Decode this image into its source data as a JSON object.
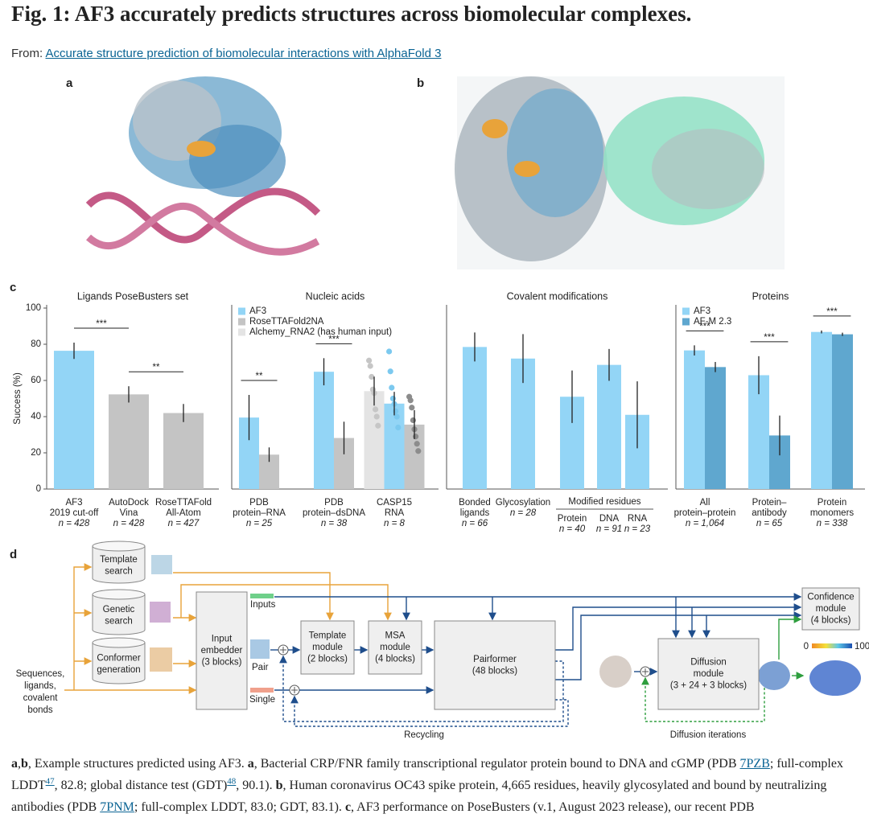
{
  "header": {
    "title": "Fig. 1: AF3 accurately predicts structures across biomolecular complexes.",
    "from_label": "From:",
    "source_link": "Accurate structure prediction of biomolecular interactions with AlphaFold 3"
  },
  "panel_labels": [
    "a",
    "b",
    "c",
    "d"
  ],
  "chart_data": [
    {
      "type": "bar",
      "title": "Ligands PoseBusters set",
      "y_label": "Success (%)",
      "ylim": [
        0,
        100
      ],
      "yticks": [
        0,
        20,
        40,
        60,
        80,
        100
      ],
      "categories": [
        [
          "AF3",
          "2019 cut-off"
        ],
        [
          "AutoDock",
          "Vina"
        ],
        [
          "RoseTTAFold",
          "All-Atom"
        ]
      ],
      "sample_sizes": [
        "n = 428",
        "n = 428",
        "n = 427"
      ],
      "series": [
        {
          "values": [
            76.4,
            52.3,
            42.0
          ],
          "errors": [
            4.5,
            4.5,
            5
          ],
          "colors": [
            "#93d5f6",
            "#c4c4c4",
            "#c4c4c4"
          ]
        }
      ],
      "significance": [
        {
          "label": "***",
          "between": [
            0,
            1
          ]
        },
        {
          "label": "**",
          "between": [
            1,
            2
          ]
        }
      ]
    },
    {
      "type": "bar",
      "title": "Nucleic acids",
      "ylim": [
        0,
        100
      ],
      "legend": "upper left",
      "categories": [
        [
          "PDB",
          "protein–RNA"
        ],
        [
          "PDB",
          "protein–dsDNA"
        ],
        [
          "CASP15",
          "RNA"
        ]
      ],
      "sample_sizes": [
        "n = 25",
        "n = 38",
        "n = 8"
      ],
      "series": [
        {
          "name": "AF3",
          "color": "#93d5f6",
          "point_color": "#7cc9ef",
          "values": [
            39.5,
            64.8,
            47.2
          ],
          "errors": [
            12.5,
            7.5,
            6.5
          ],
          "points": [
            null,
            null,
            [
              76,
              65,
              56,
              50,
              47,
              43,
              40,
              34
            ]
          ]
        },
        {
          "name": "RoseTTAFold2NA",
          "color": "#c4c4c4",
          "point_color": "#8c8c8c",
          "values": [
            19.0,
            28.2,
            35.6
          ],
          "errors": [
            4,
            9,
            8
          ],
          "points": [
            null,
            null,
            [
              51,
              49,
              45,
              38,
              33,
              29,
              25,
              21
            ]
          ]
        },
        {
          "name": "Alchemy_RNA2 (has human input)",
          "color": "#e4e4e4",
          "point_color": "#c6c6c6",
          "values": [
            null,
            null,
            54.1
          ],
          "errors": [
            null,
            null,
            8
          ],
          "points": [
            null,
            null,
            [
              71,
              68,
              62,
              55,
              53,
              44,
              40,
              35
            ]
          ]
        }
      ],
      "significance": [
        {
          "label": "**",
          "category": 0
        },
        {
          "label": "***",
          "category": 1
        }
      ]
    },
    {
      "type": "bar",
      "title": "Covalent modifications",
      "ylim": [
        0,
        100
      ],
      "categories": [
        [
          "Bonded",
          "ligands"
        ],
        [
          "Glycosylation"
        ],
        [
          "Protein"
        ],
        [
          "DNA"
        ],
        [
          "RNA"
        ]
      ],
      "sample_sizes": [
        "n = 66",
        "n = 28",
        "n = 40",
        "n = 91",
        "n = 23"
      ],
      "groups": [
        {
          "label": "Modified residues",
          "categories": [
            2,
            4
          ]
        }
      ],
      "series": [
        {
          "color": "#93d5f6",
          "values": [
            78.5,
            72.1,
            51.0,
            68.6,
            41.0
          ],
          "errors": [
            8,
            13.5,
            14.5,
            8.8,
            18.5
          ]
        }
      ]
    },
    {
      "type": "bar",
      "title": "Proteins",
      "ylim": [
        0,
        100
      ],
      "legend": "upper left",
      "categories": [
        [
          "All",
          "protein–protein"
        ],
        [
          "Protein–",
          "antibody"
        ],
        [
          "Protein",
          "monomers"
        ]
      ],
      "sample_sizes": [
        "n = 1,064",
        "n = 65",
        "n = 338"
      ],
      "series": [
        {
          "name": "AF3",
          "color": "#93d5f6",
          "values": [
            76.6,
            62.9,
            86.8
          ],
          "errors": [
            2.8,
            10.5,
            0.8
          ]
        },
        {
          "name": "AF-M 2.3",
          "color": "#5fa7cf",
          "values": [
            67.4,
            29.6,
            85.5
          ],
          "errors": [
            2.8,
            11,
            0.9
          ]
        }
      ],
      "significance": [
        {
          "label": "***",
          "category": 0
        },
        {
          "label": "***",
          "category": 1
        },
        {
          "label": "***",
          "category": 2
        }
      ]
    }
  ],
  "diagram": {
    "nodes": [
      {
        "label": [
          "Template",
          "search"
        ]
      },
      {
        "label": [
          "Genetic",
          "search"
        ]
      },
      {
        "label": [
          "Conformer",
          "generation"
        ]
      },
      {
        "label": [
          "Input",
          "embedder",
          "(3 blocks)"
        ]
      },
      {
        "label": [
          "Template",
          "module",
          "(2 blocks)"
        ]
      },
      {
        "label": [
          "MSA",
          "module",
          "(4 blocks)"
        ]
      },
      {
        "label": [
          "Pairformer",
          "(48 blocks)"
        ]
      },
      {
        "label": [
          "Diffusion",
          "module",
          "(3 + 24 + 3 blocks)"
        ]
      },
      {
        "label": [
          "Confidence",
          "module",
          "(4 blocks)"
        ]
      }
    ],
    "inputs_label": [
      "Sequences,",
      "ligands,",
      "covalent",
      "bonds"
    ],
    "stream_labels": [
      "Inputs",
      "Pair",
      "Single"
    ],
    "loop_labels": [
      "Recycling",
      "Diffusion iterations"
    ],
    "confidence_scale": [
      "0",
      "100"
    ]
  },
  "caption": [
    {
      "text": "a",
      "style": "bold"
    },
    {
      "text": ","
    },
    {
      "text": "b",
      "style": "bold"
    },
    {
      "text": ", Example structures predicted using AF3. "
    },
    {
      "text": "a",
      "style": "bold"
    },
    {
      "text": ", Bacterial CRP/FNR family transcriptional regulator protein bound to DNA and cGMP (PDB "
    },
    {
      "text": "7PZB",
      "style": "link"
    },
    {
      "text": "; full-complex LDDT"
    },
    {
      "text": "47",
      "style": "sup-link"
    },
    {
      "text": ", 82.8; global distance test (GDT)"
    },
    {
      "text": "48",
      "style": "sup-link"
    },
    {
      "text": ", 90.1). "
    },
    {
      "text": "b",
      "style": "bold"
    },
    {
      "text": ", Human coronavirus OC43 spike protein, 4,665 residues, heavily glycosylated and bound by neutralizing antibodies (PDB "
    },
    {
      "text": "7PNM",
      "style": "link"
    },
    {
      "text": "; full-complex LDDT, 83.0; GDT, 83.1). "
    },
    {
      "text": "c",
      "style": "bold"
    },
    {
      "text": ", AF3 performance on PoseBusters (v.1, August 2023 release), our recent PDB"
    }
  ]
}
